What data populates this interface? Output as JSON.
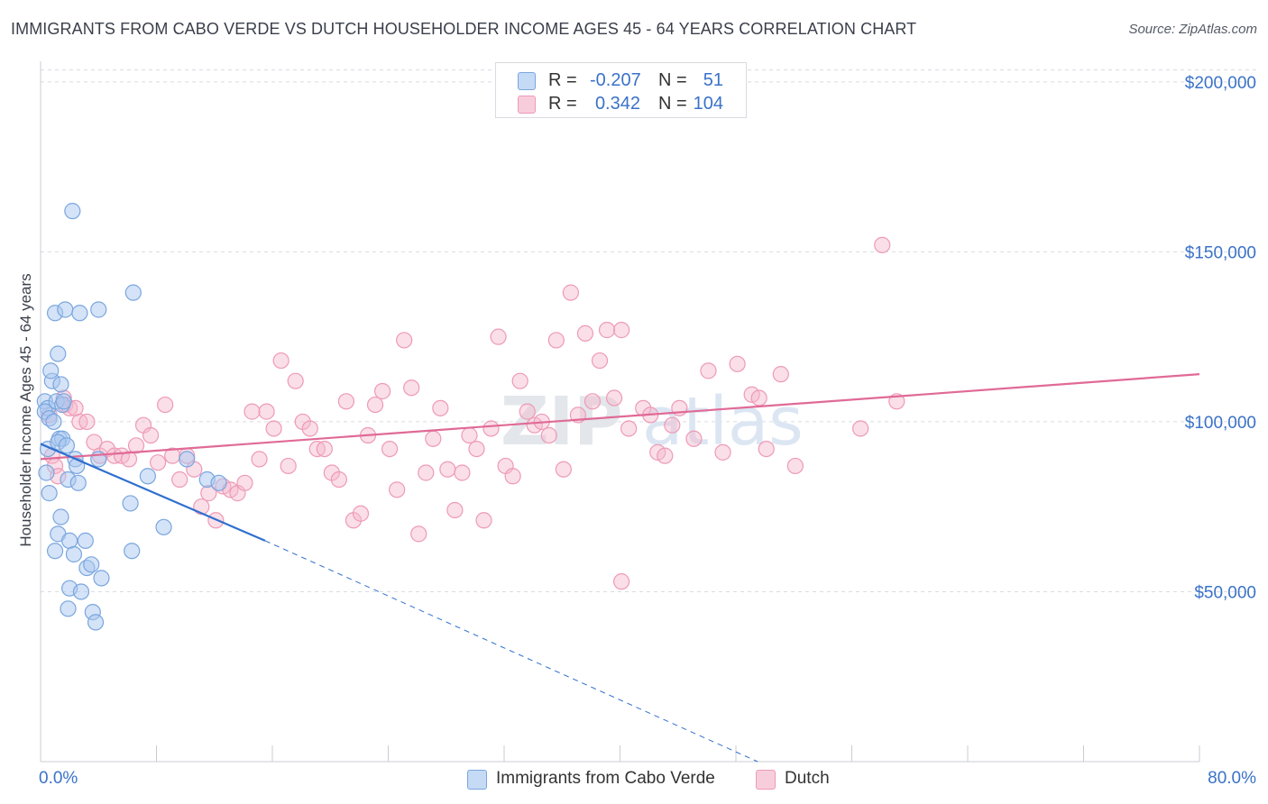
{
  "header": {
    "title": "IMMIGRANTS FROM CABO VERDE VS DUTCH HOUSEHOLDER INCOME AGES 45 - 64 YEARS CORRELATION CHART",
    "source": "Source: ZipAtlas.com"
  },
  "legend": {
    "rows": [
      {
        "r_label": "R =",
        "r_value": "-0.207",
        "n_label": "N =",
        "n_value": "51"
      },
      {
        "r_label": "R =",
        "r_value": "0.342",
        "n_label": "N =",
        "n_value": "104"
      }
    ]
  },
  "bottom_legend": {
    "series1": "Immigrants from Cabo Verde",
    "series2": "Dutch"
  },
  "colors": {
    "blue_fill": "#a9c8ef",
    "blue_stroke": "#7aa6df",
    "blue_line": "#2f6fcf",
    "pink_fill": "#f5b8cc",
    "pink_stroke": "#ee9ab6",
    "pink_line": "#e06a96",
    "axis_text": "#3a72c8",
    "grid": "#d9dce2"
  },
  "chart_data": {
    "type": "scatter",
    "title": "IMMIGRANTS FROM CABO VERDE VS DUTCH HOUSEHOLDER INCOME AGES 45 - 64 YEARS CORRELATION CHART",
    "xlabel": "",
    "ylabel": "Householder Income Ages 45 - 64 years",
    "xlim": [
      0,
      80
    ],
    "ylim": [
      0,
      205000
    ],
    "x_tick_labels": [
      "0.0%",
      "80.0%"
    ],
    "y_ticks": [
      50000,
      100000,
      150000,
      200000
    ],
    "y_tick_labels": [
      "$50,000",
      "$100,000",
      "$150,000",
      "$200,000"
    ],
    "grid": true,
    "legend_position": "top-center",
    "watermark": "ZIPatlas",
    "series": [
      {
        "name": "Immigrants from Cabo Verde",
        "color": "#a9c8ef",
        "trend": {
          "x0": 0,
          "y0": 93500,
          "x1": 15.5,
          "y1": 65000,
          "dashed_to_x": 49.5,
          "dashed_to_y": 0
        },
        "points": [
          [
            0.3,
            106000
          ],
          [
            0.5,
            104000
          ],
          [
            0.3,
            103000
          ],
          [
            0.6,
            101000
          ],
          [
            0.5,
            92000
          ],
          [
            0.4,
            85000
          ],
          [
            0.6,
            79000
          ],
          [
            0.8,
            112000
          ],
          [
            0.7,
            115000
          ],
          [
            1.0,
            132000
          ],
          [
            1.2,
            120000
          ],
          [
            1.4,
            111000
          ],
          [
            1.1,
            106000
          ],
          [
            1.5,
            105000
          ],
          [
            1.6,
            106000
          ],
          [
            1.3,
            95000
          ],
          [
            1.5,
            95000
          ],
          [
            1.2,
            94000
          ],
          [
            1.9,
            83000
          ],
          [
            1.4,
            72000
          ],
          [
            1.2,
            67000
          ],
          [
            1.0,
            62000
          ],
          [
            1.7,
            133000
          ],
          [
            2.2,
            162000
          ],
          [
            2.4,
            89000
          ],
          [
            2.5,
            87000
          ],
          [
            2.6,
            82000
          ],
          [
            2.7,
            132000
          ],
          [
            4.0,
            133000
          ],
          [
            6.4,
            138000
          ],
          [
            2.0,
            65000
          ],
          [
            3.1,
            65000
          ],
          [
            3.2,
            57000
          ],
          [
            3.5,
            58000
          ],
          [
            4.2,
            54000
          ],
          [
            2.0,
            51000
          ],
          [
            2.8,
            50000
          ],
          [
            1.9,
            45000
          ],
          [
            3.6,
            44000
          ],
          [
            3.8,
            41000
          ],
          [
            4.0,
            89000
          ],
          [
            6.3,
            62000
          ],
          [
            6.2,
            76000
          ],
          [
            7.4,
            84000
          ],
          [
            8.5,
            69000
          ],
          [
            10.1,
            89000
          ],
          [
            11.5,
            83000
          ],
          [
            12.3,
            82000
          ],
          [
            0.9,
            100000
          ],
          [
            1.8,
            93000
          ],
          [
            2.3,
            61000
          ]
        ]
      },
      {
        "name": "Dutch",
        "color": "#f5b8cc",
        "trend": {
          "x0": 0,
          "y0": 89000,
          "x1": 80,
          "y1": 114000
        },
        "points": [
          [
            0.6,
            102000
          ],
          [
            0.8,
            90000
          ],
          [
            1.0,
            87000
          ],
          [
            1.2,
            84000
          ],
          [
            1.6,
            107000
          ],
          [
            1.7,
            105000
          ],
          [
            2.0,
            104000
          ],
          [
            2.4,
            104000
          ],
          [
            2.7,
            100000
          ],
          [
            3.2,
            100000
          ],
          [
            3.7,
            94000
          ],
          [
            4.1,
            90000
          ],
          [
            4.6,
            92000
          ],
          [
            5.1,
            90000
          ],
          [
            5.6,
            90000
          ],
          [
            6.1,
            89000
          ],
          [
            6.6,
            93000
          ],
          [
            7.1,
            99000
          ],
          [
            7.6,
            96000
          ],
          [
            8.1,
            88000
          ],
          [
            8.6,
            105000
          ],
          [
            9.1,
            90000
          ],
          [
            9.6,
            83000
          ],
          [
            10.1,
            90000
          ],
          [
            10.6,
            86000
          ],
          [
            11.1,
            75000
          ],
          [
            11.6,
            79000
          ],
          [
            12.1,
            71000
          ],
          [
            12.6,
            81000
          ],
          [
            13.1,
            80000
          ],
          [
            13.6,
            79000
          ],
          [
            14.1,
            82000
          ],
          [
            14.6,
            103000
          ],
          [
            15.1,
            89000
          ],
          [
            15.6,
            103000
          ],
          [
            16.1,
            98000
          ],
          [
            16.6,
            118000
          ],
          [
            17.1,
            87000
          ],
          [
            17.6,
            112000
          ],
          [
            18.1,
            100000
          ],
          [
            18.6,
            98000
          ],
          [
            19.1,
            92000
          ],
          [
            19.6,
            92000
          ],
          [
            20.1,
            85000
          ],
          [
            20.6,
            83000
          ],
          [
            21.1,
            106000
          ],
          [
            21.6,
            71000
          ],
          [
            22.1,
            73000
          ],
          [
            22.6,
            96000
          ],
          [
            23.1,
            105000
          ],
          [
            23.6,
            109000
          ],
          [
            24.1,
            92000
          ],
          [
            24.6,
            80000
          ],
          [
            25.1,
            124000
          ],
          [
            25.6,
            110000
          ],
          [
            26.1,
            67000
          ],
          [
            26.6,
            85000
          ],
          [
            27.1,
            95000
          ],
          [
            27.6,
            104000
          ],
          [
            28.1,
            86000
          ],
          [
            28.6,
            74000
          ],
          [
            29.1,
            85000
          ],
          [
            29.6,
            96000
          ],
          [
            30.1,
            92000
          ],
          [
            30.6,
            71000
          ],
          [
            31.1,
            98000
          ],
          [
            31.6,
            125000
          ],
          [
            32.1,
            87000
          ],
          [
            32.6,
            84000
          ],
          [
            33.1,
            112000
          ],
          [
            33.6,
            103000
          ],
          [
            34.1,
            99000
          ],
          [
            34.6,
            100000
          ],
          [
            35.1,
            96000
          ],
          [
            35.6,
            124000
          ],
          [
            36.1,
            86000
          ],
          [
            36.6,
            138000
          ],
          [
            37.1,
            102000
          ],
          [
            37.6,
            126000
          ],
          [
            38.1,
            106000
          ],
          [
            38.6,
            118000
          ],
          [
            39.1,
            127000
          ],
          [
            39.6,
            107000
          ],
          [
            40.1,
            127000
          ],
          [
            40.6,
            98000
          ],
          [
            41.6,
            104000
          ],
          [
            42.1,
            102000
          ],
          [
            42.6,
            91000
          ],
          [
            43.1,
            90000
          ],
          [
            44.1,
            104000
          ],
          [
            45.1,
            95000
          ],
          [
            46.1,
            115000
          ],
          [
            47.1,
            91000
          ],
          [
            48.1,
            117000
          ],
          [
            49.1,
            108000
          ],
          [
            50.1,
            92000
          ],
          [
            51.1,
            114000
          ],
          [
            52.1,
            87000
          ],
          [
            58.1,
            152000
          ],
          [
            59.1,
            106000
          ],
          [
            40.1,
            53000
          ],
          [
            49.6,
            107000
          ],
          [
            43.6,
            99000
          ],
          [
            56.6,
            98000
          ]
        ]
      }
    ]
  }
}
